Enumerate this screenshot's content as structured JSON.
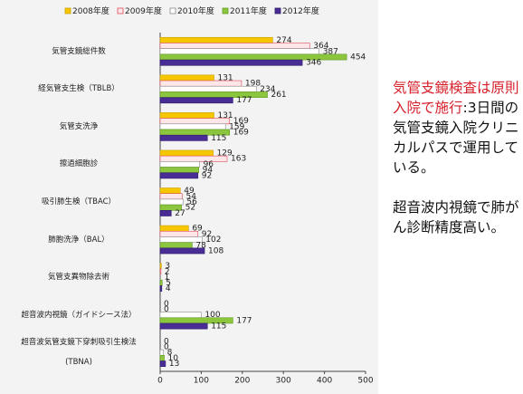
{
  "chart_data": {
    "type": "barh",
    "categories": [
      "気管支鏡総件数",
      "経気管支生検（TBLB）",
      "気管支洗浄",
      "擦過細胞診",
      "吸引肺生検（TBAC）",
      "肺胞洗浄（BAL）",
      "気管支異物除去術",
      "超音波内視鏡（ガイドシース法）",
      "超音波気管支鏡下穿刺吸引生検法\n(TBNA)"
    ],
    "series": [
      {
        "name": "2008年度",
        "color": "#f6c700",
        "edgecolor": "#c9a000",
        "values": [
          274,
          131,
          131,
          129,
          49,
          69,
          3,
          0,
          0
        ]
      },
      {
        "name": "2009年度",
        "color": "#fde6e8",
        "edgecolor": "#e0495c",
        "values": [
          364,
          198,
          169,
          163,
          54,
          92,
          2,
          0,
          0
        ]
      },
      {
        "name": "2010年度",
        "color": "#ffffff",
        "edgecolor": "#8a8a8a",
        "values": [
          387,
          234,
          159,
          96,
          56,
          102,
          1,
          100,
          8
        ]
      },
      {
        "name": "2011年度",
        "color": "#8cc63e",
        "edgecolor": "#5f9a1e",
        "values": [
          454,
          261,
          169,
          94,
          52,
          78,
          5,
          177,
          10
        ]
      },
      {
        "name": "2012年度",
        "color": "#4a2d94",
        "edgecolor": "#2e1a6a",
        "values": [
          346,
          177,
          115,
          92,
          27,
          108,
          4,
          115,
          13
        ]
      }
    ],
    "xlim": [
      0,
      500
    ],
    "xticks": [
      0,
      100,
      200,
      300,
      400,
      500
    ]
  },
  "side_text": {
    "red": "気管支鏡検査は原則入院で施行",
    "black": ":3日間の気管支鏡入院クリニカルパスで運用している。",
    "note": "超音波内視鏡で肺がん診断精度高い。"
  }
}
